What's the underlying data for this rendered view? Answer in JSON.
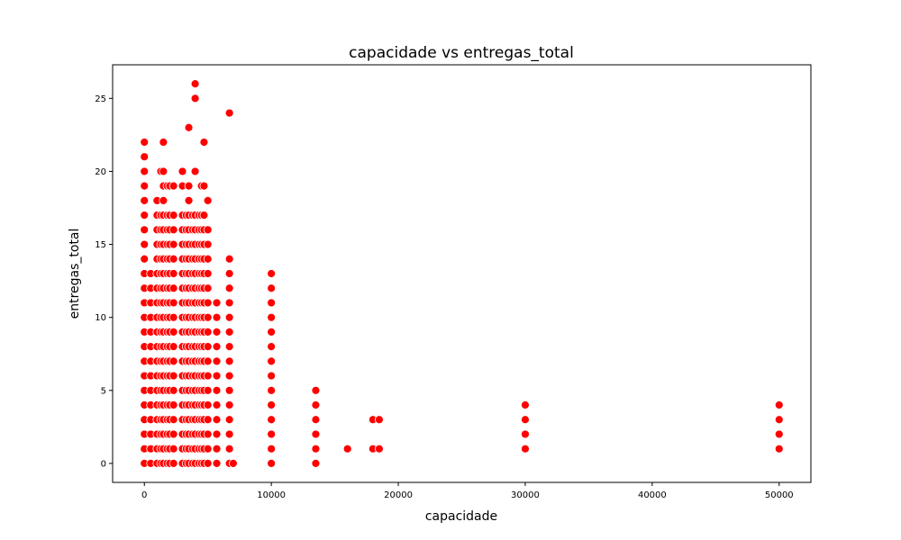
{
  "chart_data": {
    "type": "scatter",
    "title": "capacidade vs entregas_total",
    "xlabel": "capacidade",
    "ylabel": "entregas_total",
    "xlim": [
      -2500,
      52500
    ],
    "ylim": [
      -1.3,
      27.3
    ],
    "xticks": [
      0,
      10000,
      20000,
      30000,
      40000,
      50000
    ],
    "yticks": [
      0,
      5,
      10,
      15,
      20,
      25
    ],
    "grid": false,
    "legend": "none",
    "marker_color": "#ff0000",
    "marker_edge": "#ffffff",
    "series": [
      {
        "groups": [
          {
            "x": 0,
            "y": [
              0,
              1,
              2,
              3,
              4,
              5,
              6,
              7,
              8,
              9,
              10,
              11,
              12,
              13,
              14,
              15,
              16,
              17,
              18,
              19,
              20,
              21,
              22
            ]
          },
          {
            "x": 500,
            "y": [
              0,
              1,
              2,
              3,
              4,
              5,
              6,
              7,
              8,
              9,
              10,
              11,
              12,
              13
            ]
          },
          {
            "x": 1000,
            "y": [
              0,
              1,
              2,
              3,
              4,
              5,
              6,
              7,
              8,
              9,
              10,
              11,
              12,
              13,
              14,
              15,
              16,
              17,
              18
            ]
          },
          {
            "x": 1300,
            "y": [
              0,
              1,
              2,
              3,
              4,
              5,
              6,
              7,
              8,
              9,
              10,
              11,
              12,
              13,
              14,
              15,
              16,
              17,
              20
            ]
          },
          {
            "x": 1500,
            "y": [
              0,
              1,
              2,
              3,
              4,
              5,
              6,
              7,
              8,
              9,
              10,
              11,
              12,
              13,
              14,
              15,
              16,
              17,
              18,
              19,
              20,
              22
            ]
          },
          {
            "x": 1800,
            "y": [
              0,
              1,
              2,
              3,
              4,
              5,
              6,
              7,
              8,
              9,
              10,
              11,
              12,
              13,
              14,
              15,
              16,
              17,
              19
            ]
          },
          {
            "x": 2000,
            "y": [
              0,
              1,
              2,
              3,
              4,
              5,
              6,
              7,
              8,
              9,
              10,
              11,
              12,
              13,
              14,
              15,
              16,
              17,
              19
            ]
          },
          {
            "x": 2300,
            "y": [
              0,
              1,
              2,
              3,
              4,
              5,
              6,
              7,
              8,
              9,
              10,
              11,
              12,
              13,
              14,
              15,
              16,
              17,
              19
            ]
          },
          {
            "x": 3000,
            "y": [
              0,
              1,
              2,
              3,
              4,
              5,
              6,
              7,
              8,
              9,
              10,
              11,
              12,
              13,
              14,
              15,
              16,
              17,
              19,
              20
            ]
          },
          {
            "x": 3300,
            "y": [
              0,
              1,
              2,
              3,
              4,
              5,
              6,
              7,
              8,
              9,
              10,
              11,
              12,
              13,
              14,
              15,
              16,
              17
            ]
          },
          {
            "x": 3500,
            "y": [
              0,
              1,
              2,
              3,
              4,
              5,
              6,
              7,
              8,
              9,
              10,
              11,
              12,
              13,
              14,
              15,
              16,
              17,
              18,
              19,
              23
            ]
          },
          {
            "x": 3800,
            "y": [
              0,
              1,
              2,
              3,
              4,
              5,
              6,
              7,
              8,
              9,
              10,
              11,
              12,
              13,
              14,
              15,
              16,
              17
            ]
          },
          {
            "x": 4000,
            "y": [
              0,
              1,
              2,
              3,
              4,
              5,
              6,
              7,
              8,
              9,
              10,
              11,
              12,
              13,
              14,
              15,
              16,
              17,
              20,
              25,
              26
            ]
          },
          {
            "x": 4300,
            "y": [
              0,
              1,
              2,
              3,
              4,
              5,
              6,
              7,
              8,
              9,
              10,
              11,
              12,
              13,
              14,
              15,
              16,
              17
            ]
          },
          {
            "x": 4500,
            "y": [
              0,
              1,
              2,
              3,
              4,
              5,
              6,
              7,
              8,
              9,
              10,
              11,
              12,
              13,
              14,
              15,
              16,
              17,
              19
            ]
          },
          {
            "x": 4700,
            "y": [
              0,
              1,
              2,
              3,
              4,
              5,
              6,
              7,
              8,
              9,
              10,
              11,
              12,
              13,
              14,
              15,
              16,
              17,
              19,
              22
            ]
          },
          {
            "x": 5000,
            "y": [
              0,
              1,
              2,
              3,
              4,
              5,
              6,
              7,
              8,
              9,
              10,
              11,
              12,
              13,
              14,
              15,
              16,
              18
            ]
          },
          {
            "x": 5700,
            "y": [
              0,
              1,
              2,
              3,
              4,
              5,
              6,
              7,
              8,
              9,
              10,
              11
            ]
          },
          {
            "x": 6700,
            "y": [
              0,
              1,
              2,
              3,
              4,
              5,
              6,
              7,
              8,
              9,
              10,
              11,
              12,
              13,
              14,
              24
            ]
          },
          {
            "x": 7000,
            "y": [
              0
            ]
          },
          {
            "x": 10000,
            "y": [
              0,
              1,
              2,
              3,
              4,
              5,
              6,
              7,
              8,
              9,
              10,
              11,
              12,
              13
            ]
          },
          {
            "x": 13500,
            "y": [
              0,
              1,
              2,
              3,
              4,
              5
            ]
          },
          {
            "x": 16000,
            "y": [
              1
            ]
          },
          {
            "x": 18000,
            "y": [
              1,
              3
            ]
          },
          {
            "x": 18500,
            "y": [
              1,
              3
            ]
          },
          {
            "x": 30000,
            "y": [
              1,
              2,
              3,
              4
            ]
          },
          {
            "x": 50000,
            "y": [
              1,
              2,
              3,
              4
            ]
          }
        ]
      }
    ]
  }
}
